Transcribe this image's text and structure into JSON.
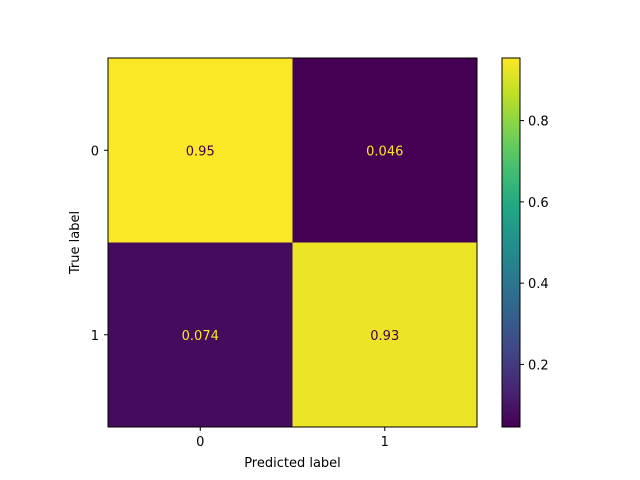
{
  "chart_data": {
    "type": "heatmap",
    "title": "",
    "xlabel": "Predicted label",
    "ylabel": "True label",
    "x_categories": [
      "0",
      "1"
    ],
    "y_categories": [
      "0",
      "1"
    ],
    "values": [
      [
        0.95,
        0.046
      ],
      [
        0.074,
        0.93
      ]
    ],
    "cell_labels": [
      [
        "0.95",
        "0.046"
      ],
      [
        "0.074",
        "0.93"
      ]
    ],
    "colormap": "viridis",
    "colorbar": {
      "range": [
        0.046,
        0.954
      ],
      "ticks": [
        0.2,
        0.4,
        0.6,
        0.8
      ],
      "tick_labels": [
        "0.2",
        "0.4",
        "0.6",
        "0.8"
      ]
    },
    "grid": false
  },
  "colors": {
    "text_on_dark": "#fde725",
    "text_on_light": "#440154",
    "axis": "#000000"
  }
}
